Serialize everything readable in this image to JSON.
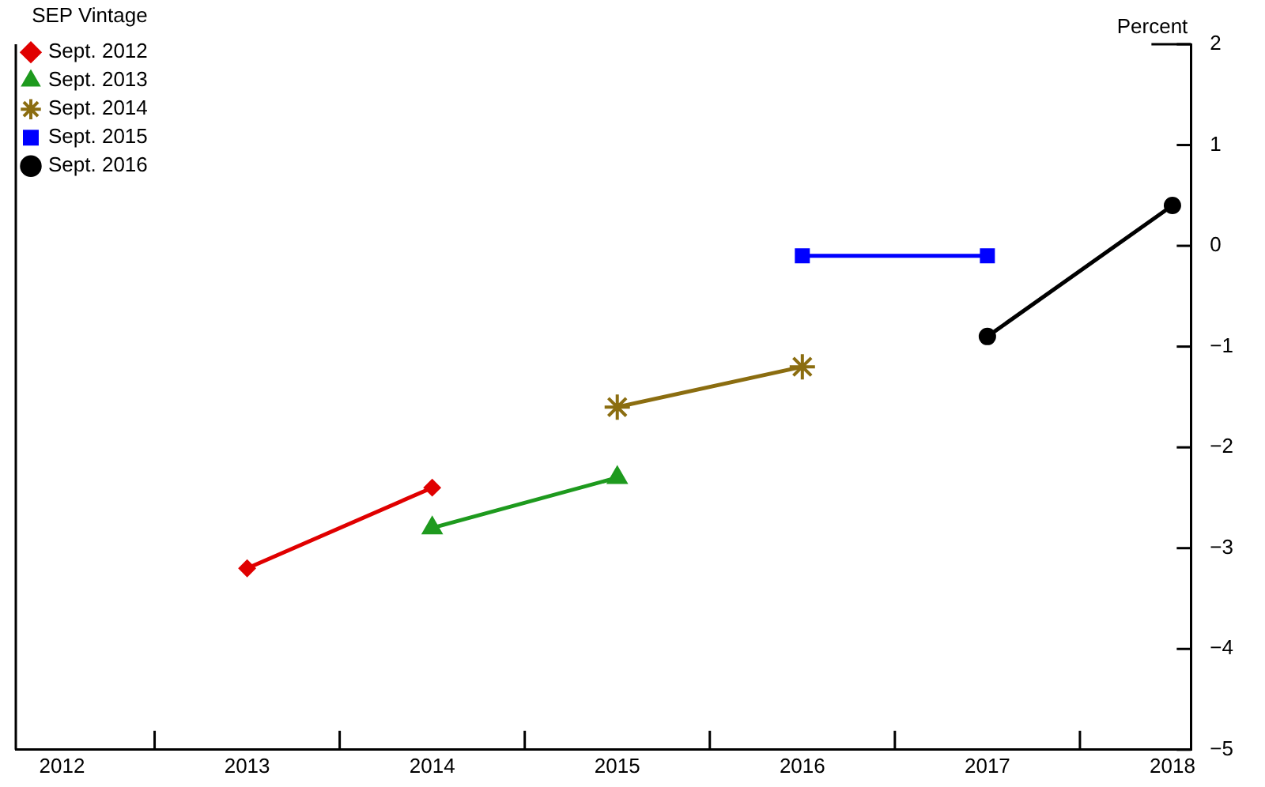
{
  "chart_data": {
    "type": "line",
    "ylabel": "Percent",
    "legend_title": "SEP Vintage",
    "legend": "top left",
    "grid": false,
    "line_style": "solid",
    "xlim": [
      2011.75,
      2018.1
    ],
    "xticks": [
      2012,
      {
        "value": 2012.5,
        "label": null
      },
      2013,
      {
        "value": 2013.5,
        "label": null
      },
      2014,
      {
        "value": 2014.5,
        "label": null
      },
      2015,
      {
        "value": 2015.5,
        "label": null
      },
      2016,
      {
        "value": 2016.5,
        "label": null
      },
      2017,
      {
        "value": 2017.5,
        "label": null
      },
      2018
    ],
    "ylim": [
      -5,
      2
    ],
    "yticks": [
      -5,
      -4,
      -3,
      -2,
      -1,
      0,
      1,
      2
    ],
    "series": [
      {
        "name": "Sept. 2012",
        "color": "#e00000",
        "marker": "diamond",
        "x": [
          2013,
          2014
        ],
        "values": [
          -3.2,
          -2.4
        ]
      },
      {
        "name": "Sept. 2013",
        "color": "#1e9a1e",
        "marker": "triangle",
        "x": [
          2014,
          2015
        ],
        "values": [
          -2.8,
          -2.3
        ]
      },
      {
        "name": "Sept. 2014",
        "color": "#8b6d10",
        "marker": "cross",
        "x": [
          2015,
          2016
        ],
        "values": [
          -1.6,
          -1.2
        ]
      },
      {
        "name": "Sept. 2015",
        "color": "#0000ff",
        "marker": "square",
        "x": [
          2016,
          2017
        ],
        "values": [
          -0.1,
          -0.1
        ]
      },
      {
        "name": "Sept. 2016",
        "color": "#000000",
        "marker": "circle",
        "x": [
          2017,
          2018
        ],
        "values": [
          -0.9,
          0.4
        ]
      }
    ]
  }
}
